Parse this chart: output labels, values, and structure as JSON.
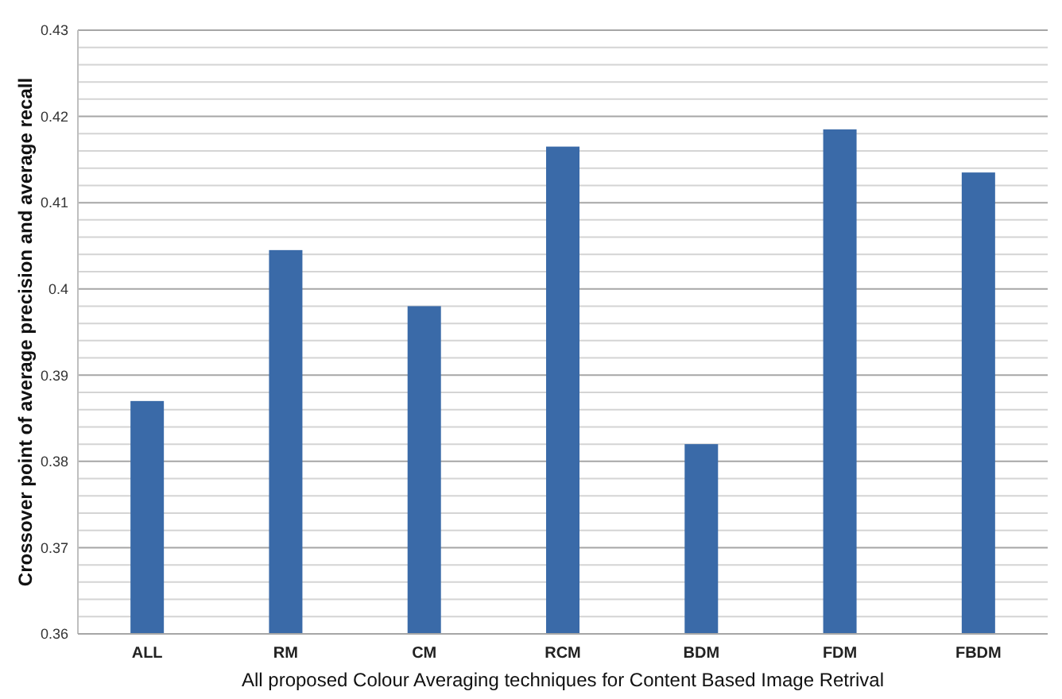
{
  "chart_data": {
    "type": "bar",
    "xlabel": "All proposed Colour Averaging techniques for Content Based  Image Retrival",
    "ylabel": "Crossover point of average precision and average recall",
    "categories": [
      "ALL",
      "RM",
      "CM",
      "RCM",
      "BDM",
      "FDM",
      "FBDM"
    ],
    "values": [
      0.387,
      0.4045,
      0.398,
      0.4165,
      0.382,
      0.4185,
      0.4135
    ],
    "color": "#3a6aa8",
    "ylim": [
      0.36,
      0.43
    ],
    "yticks": [
      0.36,
      {
        "value": 0.362,
        "label": null
      },
      {
        "value": 0.364,
        "label": null
      },
      {
        "value": 0.366,
        "label": null
      },
      {
        "value": 0.368,
        "label": null
      },
      0.37,
      {
        "value": 0.372,
        "label": null
      },
      {
        "value": 0.374,
        "label": null
      },
      {
        "value": 0.376,
        "label": null
      },
      {
        "value": 0.378,
        "label": null
      },
      0.38,
      {
        "value": 0.382,
        "label": null
      },
      {
        "value": 0.384,
        "label": null
      },
      {
        "value": 0.386,
        "label": null
      },
      {
        "value": 0.388,
        "label": null
      },
      0.39,
      {
        "value": 0.392,
        "label": null
      },
      {
        "value": 0.394,
        "label": null
      },
      {
        "value": 0.396,
        "label": null
      },
      {
        "value": 0.398,
        "label": null
      },
      {
        "value": 0.4,
        "label": "0.4"
      },
      {
        "value": 0.402,
        "label": null
      },
      {
        "value": 0.404,
        "label": null
      },
      {
        "value": 0.406,
        "label": null
      },
      {
        "value": 0.408,
        "label": null
      },
      0.41,
      {
        "value": 0.412,
        "label": null
      },
      {
        "value": 0.414,
        "label": null
      },
      {
        "value": 0.416,
        "label": null
      },
      {
        "value": 0.418,
        "label": null
      },
      0.42,
      {
        "value": 0.422,
        "label": null
      },
      {
        "value": 0.424,
        "label": null
      },
      {
        "value": 0.426,
        "label": null
      },
      {
        "value": 0.428,
        "label": null
      },
      0.43
    ],
    "grid": true
  }
}
